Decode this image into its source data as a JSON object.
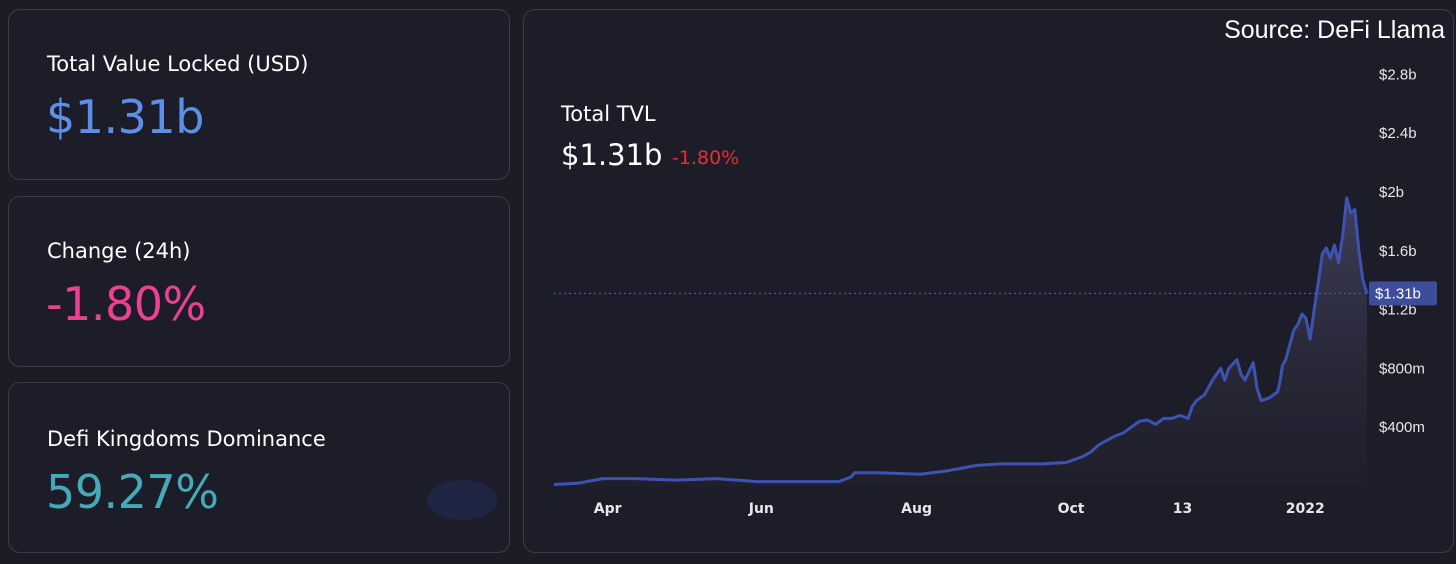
{
  "cards": {
    "tvl": {
      "label": "Total Value Locked (USD)",
      "value": "$1.31b",
      "color": "#5c8fe8"
    },
    "change": {
      "label": "Change (24h)",
      "value": "-1.80%",
      "color": "#e9428f"
    },
    "dominance": {
      "label": "Defi Kingdoms Dominance",
      "value": "59.27%",
      "color": "#45aab8"
    }
  },
  "chart_header": {
    "source": "Source: DeFi Llama",
    "label": "Total TVL",
    "value": "$1.31b",
    "change": "-1.80%"
  },
  "chart_data": {
    "type": "area",
    "ylim": [
      0,
      3.0
    ],
    "yticks": [
      {
        "v": 0.4,
        "label": "$400m"
      },
      {
        "v": 0.8,
        "label": "$800m"
      },
      {
        "v": 1.2,
        "label": "$1.2b"
      },
      {
        "v": 1.6,
        "label": "$1.6b"
      },
      {
        "v": 2.0,
        "label": "$2b"
      },
      {
        "v": 2.4,
        "label": "$2.4b"
      },
      {
        "v": 2.8,
        "label": "$2.8b"
      }
    ],
    "xlim": [
      0,
      100
    ],
    "xticks": [
      {
        "v": 6.6,
        "label": "Apr"
      },
      {
        "v": 25.5,
        "label": "Jun"
      },
      {
        "v": 44.6,
        "label": "Aug"
      },
      {
        "v": 63.6,
        "label": "Oct"
      },
      {
        "v": 77.3,
        "label": "13"
      },
      {
        "v": 92.4,
        "label": "2022"
      }
    ],
    "current": {
      "value": 1.31,
      "label": "$1.31b"
    },
    "series": [
      {
        "x": [
          0,
          3,
          5,
          6,
          10,
          15,
          20,
          25,
          30,
          35,
          36.5,
          37,
          40,
          45,
          48,
          50,
          52,
          55,
          60,
          63,
          65,
          66,
          67,
          69,
          70,
          71,
          72,
          73,
          74,
          75,
          76,
          77,
          78,
          78.5,
          79,
          80,
          81,
          82,
          82.5,
          83,
          84,
          84.5,
          85,
          86,
          86.5,
          87,
          88,
          89,
          89.3,
          89.6,
          90,
          91,
          91.5,
          92,
          92.5,
          93,
          93.5,
          94,
          94.5,
          95,
          95.5,
          96,
          96.5,
          97,
          97.5,
          98,
          98.5,
          99,
          99.5,
          100
        ],
        "values": [
          0.01,
          0.02,
          0.04,
          0.05,
          0.05,
          0.04,
          0.05,
          0.03,
          0.03,
          0.03,
          0.06,
          0.09,
          0.09,
          0.08,
          0.1,
          0.12,
          0.14,
          0.15,
          0.15,
          0.16,
          0.2,
          0.23,
          0.28,
          0.34,
          0.36,
          0.4,
          0.44,
          0.45,
          0.42,
          0.46,
          0.46,
          0.48,
          0.46,
          0.54,
          0.58,
          0.62,
          0.72,
          0.8,
          0.72,
          0.8,
          0.86,
          0.76,
          0.72,
          0.84,
          0.66,
          0.58,
          0.6,
          0.64,
          0.71,
          0.82,
          0.86,
          1.06,
          1.1,
          1.17,
          1.14,
          1.0,
          1.2,
          1.38,
          1.58,
          1.62,
          1.55,
          1.64,
          1.52,
          1.7,
          1.96,
          1.86,
          1.88,
          1.6,
          1.4,
          1.31
        ]
      }
    ]
  },
  "colors": {
    "line": "#3e53b0",
    "label_bg": "#3e4d9a"
  }
}
